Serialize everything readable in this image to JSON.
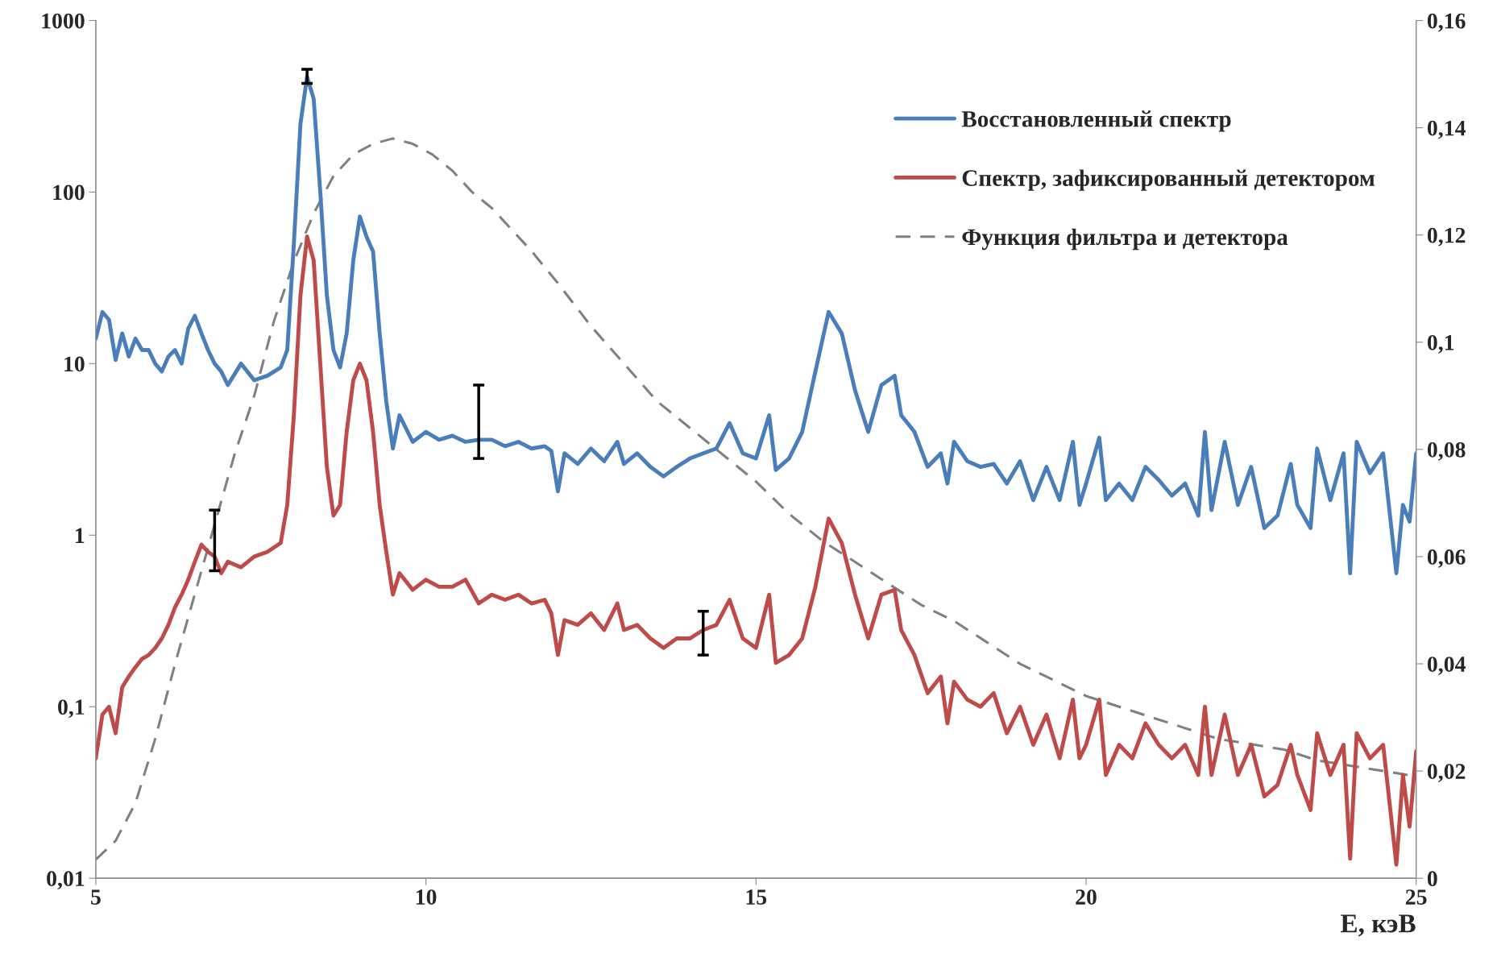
{
  "chart_data": {
    "type": "line",
    "xlabel": "E, кэВ",
    "x": [
      5.0,
      5.1,
      5.2,
      5.3,
      5.4,
      5.5,
      5.6,
      5.7,
      5.8,
      5.9,
      6.0,
      6.1,
      6.2,
      6.3,
      6.4,
      6.5,
      6.6,
      6.7,
      6.8,
      6.9,
      7.0,
      7.2,
      7.4,
      7.6,
      7.8,
      7.9,
      8.0,
      8.1,
      8.2,
      8.3,
      8.4,
      8.5,
      8.6,
      8.7,
      8.8,
      8.9,
      9.0,
      9.1,
      9.2,
      9.3,
      9.4,
      9.5,
      9.6,
      9.8,
      10.0,
      10.2,
      10.4,
      10.6,
      10.8,
      11.0,
      11.2,
      11.4,
      11.6,
      11.8,
      11.9,
      12.0,
      12.1,
      12.3,
      12.5,
      12.7,
      12.9,
      13.0,
      13.2,
      13.4,
      13.6,
      13.8,
      14.0,
      14.2,
      14.4,
      14.6,
      14.8,
      15.0,
      15.2,
      15.3,
      15.5,
      15.7,
      15.9,
      16.1,
      16.3,
      16.5,
      16.7,
      16.9,
      17.1,
      17.2,
      17.4,
      17.6,
      17.8,
      17.9,
      18.0,
      18.2,
      18.4,
      18.6,
      18.8,
      19.0,
      19.2,
      19.4,
      19.6,
      19.8,
      19.9,
      20.0,
      20.2,
      20.3,
      20.5,
      20.7,
      20.9,
      21.1,
      21.3,
      21.5,
      21.7,
      21.8,
      21.9,
      22.1,
      22.3,
      22.5,
      22.7,
      22.9,
      23.1,
      23.2,
      23.4,
      23.5,
      23.7,
      23.9,
      24.0,
      24.1,
      24.3,
      24.5,
      24.7,
      24.8,
      24.9,
      25.0
    ],
    "series": [
      {
        "name": "Восстановленный спектр",
        "color": "#4a7ebb",
        "values": [
          14,
          20,
          18,
          10.5,
          15,
          11,
          14,
          12,
          12,
          10,
          9,
          11,
          12,
          10,
          16,
          19,
          15,
          12,
          10,
          9,
          7.5,
          10,
          8,
          8.5,
          9.5,
          12,
          50,
          250,
          470,
          350,
          100,
          25,
          12,
          9.5,
          15,
          40,
          72,
          55,
          45,
          15,
          6,
          3.2,
          5,
          3.5,
          4,
          3.6,
          3.8,
          3.5,
          3.6,
          3.6,
          3.3,
          3.5,
          3.2,
          3.3,
          3.1,
          1.8,
          3,
          2.6,
          3.2,
          2.7,
          3.5,
          2.6,
          3,
          2.5,
          2.2,
          2.5,
          2.8,
          3,
          3.2,
          4.5,
          3,
          2.8,
          5,
          2.4,
          2.8,
          4,
          9,
          20,
          15,
          7,
          4,
          7.5,
          8.5,
          5,
          4,
          2.5,
          3,
          2,
          3.5,
          2.7,
          2.5,
          2.6,
          2,
          2.7,
          1.6,
          2.5,
          1.6,
          3.5,
          1.5,
          2,
          3.7,
          1.6,
          2,
          1.6,
          2.5,
          2.1,
          1.7,
          2,
          1.3,
          4,
          1.4,
          3.5,
          1.5,
          2.5,
          1.1,
          1.3,
          2.6,
          1.5,
          1.1,
          3.2,
          1.6,
          3,
          0.6,
          3.5,
          2.3,
          3,
          0.6,
          1.5,
          1.2,
          3
        ],
        "errors": [
          null,
          null,
          null,
          null,
          null,
          null,
          null,
          null,
          null,
          null,
          null,
          null,
          null,
          null,
          null,
          null,
          null,
          null,
          null,
          null,
          null,
          null,
          null,
          null,
          null,
          null,
          null,
          null,
          [
            430,
            520
          ],
          null,
          null,
          null,
          null,
          null,
          null,
          null,
          null,
          null,
          null,
          null,
          null,
          null,
          null,
          null,
          null,
          null,
          null,
          null,
          [
            2.8,
            7.5
          ],
          null,
          null,
          null,
          null,
          null,
          null,
          null,
          null,
          null,
          null,
          null,
          null,
          null,
          null,
          null,
          null,
          null,
          null,
          null,
          null,
          null,
          null,
          null,
          null,
          null,
          null,
          null,
          null,
          null,
          null,
          null,
          null,
          null,
          null,
          null,
          null,
          null,
          null,
          null,
          null,
          null,
          null,
          null,
          null,
          null,
          null,
          null,
          null,
          null,
          null,
          null,
          null,
          null,
          null,
          null,
          null,
          null,
          null,
          null,
          null,
          null,
          null,
          null,
          null,
          null,
          null,
          null,
          null,
          null,
          null,
          null,
          null,
          null,
          null,
          null,
          null,
          null,
          null,
          null,
          null,
          null
        ]
      },
      {
        "name": "Спектр, зафиксированный детектором",
        "color": "#be4b48",
        "values": [
          0.05,
          0.09,
          0.1,
          0.07,
          0.13,
          0.15,
          0.17,
          0.19,
          0.2,
          0.22,
          0.25,
          0.3,
          0.38,
          0.45,
          0.55,
          0.7,
          0.88,
          0.8,
          0.75,
          0.6,
          0.7,
          0.65,
          0.75,
          0.8,
          0.9,
          1.5,
          5,
          25,
          55,
          40,
          10,
          2.5,
          1.3,
          1.5,
          4,
          8,
          10,
          8,
          4,
          1.5,
          0.8,
          0.45,
          0.6,
          0.48,
          0.55,
          0.5,
          0.5,
          0.55,
          0.4,
          0.45,
          0.42,
          0.45,
          0.4,
          0.42,
          0.35,
          0.2,
          0.32,
          0.3,
          0.35,
          0.28,
          0.4,
          0.28,
          0.3,
          0.25,
          0.22,
          0.25,
          0.25,
          0.28,
          0.3,
          0.42,
          0.25,
          0.22,
          0.45,
          0.18,
          0.2,
          0.25,
          0.5,
          1.25,
          0.9,
          0.45,
          0.25,
          0.45,
          0.48,
          0.28,
          0.2,
          0.12,
          0.15,
          0.08,
          0.14,
          0.11,
          0.1,
          0.12,
          0.07,
          0.1,
          0.06,
          0.09,
          0.05,
          0.11,
          0.05,
          0.06,
          0.11,
          0.04,
          0.06,
          0.05,
          0.08,
          0.06,
          0.05,
          0.06,
          0.04,
          0.1,
          0.04,
          0.09,
          0.04,
          0.06,
          0.03,
          0.035,
          0.06,
          0.04,
          0.025,
          0.07,
          0.04,
          0.06,
          0.013,
          0.07,
          0.05,
          0.06,
          0.012,
          0.04,
          0.02,
          0.055
        ],
        "errors": [
          null,
          null,
          null,
          null,
          null,
          null,
          null,
          null,
          null,
          null,
          null,
          null,
          null,
          null,
          null,
          null,
          null,
          null,
          [
            0.62,
            1.4
          ],
          null,
          null,
          null,
          null,
          null,
          null,
          null,
          null,
          null,
          null,
          null,
          null,
          null,
          null,
          null,
          null,
          null,
          null,
          null,
          null,
          null,
          null,
          null,
          null,
          null,
          null,
          null,
          null,
          null,
          null,
          null,
          null,
          null,
          null,
          null,
          null,
          null,
          null,
          null,
          null,
          null,
          null,
          null,
          null,
          null,
          null,
          null,
          null,
          [
            0.2,
            0.36
          ],
          null,
          null,
          null,
          null,
          null,
          null,
          null,
          null,
          null,
          null,
          null,
          null,
          null,
          null,
          null,
          null,
          null,
          null,
          null,
          null,
          null,
          null,
          null,
          null,
          null,
          null,
          null,
          null,
          null,
          null,
          null,
          null,
          null,
          null,
          null,
          null,
          null,
          null,
          null,
          null,
          null,
          null,
          null,
          null,
          null,
          null,
          null,
          null,
          null,
          null,
          null,
          null,
          null,
          null,
          null,
          null,
          null,
          null,
          null,
          null,
          null,
          null
        ]
      },
      {
        "name": "Функция фильтра и детектора",
        "color": "#808080",
        "axis": "y2",
        "line_style": "dashed",
        "x": [
          5.0,
          5.3,
          5.6,
          5.9,
          6.2,
          6.5,
          6.8,
          7.1,
          7.4,
          7.7,
          8.0,
          8.3,
          8.6,
          8.9,
          9.2,
          9.5,
          9.8,
          10.1,
          10.4,
          10.7,
          11.0,
          11.3,
          11.6,
          12.0,
          12.5,
          13.0,
          13.5,
          14.0,
          14.5,
          15.0,
          15.5,
          16.0,
          16.5,
          17.0,
          17.5,
          18.0,
          18.5,
          19.0,
          19.5,
          20.0,
          20.5,
          21.0,
          21.5,
          22.0,
          22.5,
          23.0,
          23.5,
          24.0,
          24.5,
          25.0
        ],
        "values": [
          0.0035,
          0.007,
          0.014,
          0.026,
          0.04,
          0.053,
          0.066,
          0.079,
          0.09,
          0.104,
          0.115,
          0.124,
          0.131,
          0.135,
          0.137,
          0.138,
          0.137,
          0.135,
          0.132,
          0.128,
          0.125,
          0.121,
          0.117,
          0.111,
          0.103,
          0.096,
          0.089,
          0.084,
          0.079,
          0.074,
          0.068,
          0.063,
          0.059,
          0.055,
          0.051,
          0.048,
          0.044,
          0.04,
          0.037,
          0.034,
          0.032,
          0.03,
          0.028,
          0.026,
          0.025,
          0.024,
          0.022,
          0.021,
          0.02,
          0.019
        ]
      }
    ],
    "log": "y",
    "xlim": [
      5,
      25
    ],
    "xticks": [
      5,
      10,
      15,
      20,
      25
    ],
    "ylim": [
      0.01,
      1000
    ],
    "yticks": [
      {
        "value": 0.01,
        "label": "0,01"
      },
      {
        "value": 0.1,
        "label": "0,1"
      },
      1,
      10,
      100,
      1000
    ],
    "y2lim": [
      0,
      0.16
    ],
    "y2ticks": [
      0,
      {
        "value": 0.02,
        "label": "0,02"
      },
      {
        "value": 0.04,
        "label": "0,04"
      },
      {
        "value": 0.06,
        "label": "0,06"
      },
      {
        "value": 0.08,
        "label": "0,08"
      },
      {
        "value": 0.1,
        "label": "0,1"
      },
      {
        "value": 0.12,
        "label": "0,12"
      },
      {
        "value": 0.14,
        "label": "0,14"
      },
      {
        "value": 0.16,
        "label": "0,16"
      }
    ],
    "grid": false,
    "legend": "top right",
    "marker": "none"
  }
}
